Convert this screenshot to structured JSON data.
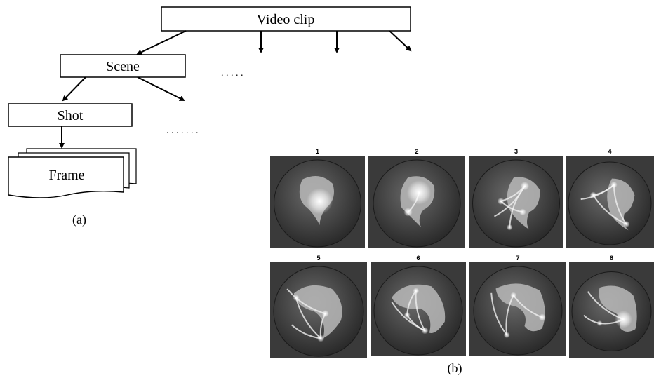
{
  "hierarchy": {
    "video_clip": "Video clip",
    "scene": "Scene",
    "shot": "Shot",
    "frame": "Frame",
    "ellipsis_top": ". . . . .",
    "ellipsis_mid": ". . .   . . . ."
  },
  "captions": {
    "a": "(a)",
    "b": "(b)"
  },
  "frames": [
    {
      "number": "1"
    },
    {
      "number": "2"
    },
    {
      "number": "3"
    },
    {
      "number": "4"
    },
    {
      "number": "5"
    },
    {
      "number": "6"
    },
    {
      "number": "7"
    },
    {
      "number": "8"
    }
  ],
  "colors": {
    "frame_background": "#3a3a3a",
    "ocean": "#4a4a4a",
    "land": "#b8b8b8",
    "highlight": "#ffffff"
  }
}
